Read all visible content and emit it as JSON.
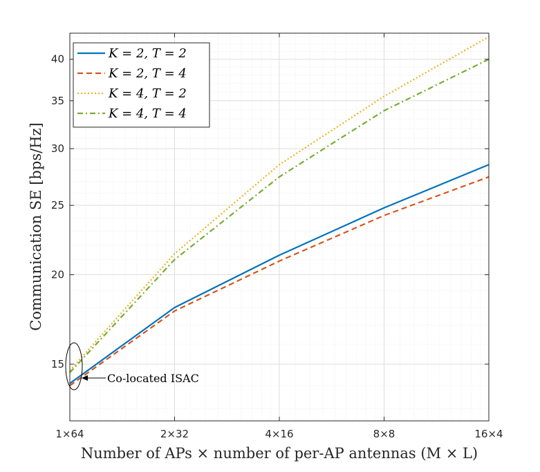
{
  "chart_data": {
    "type": "line",
    "title": "",
    "xlabel": "Number of APs × number of per-AP antennas (M × L)",
    "ylabel": "Communication SE [bps/Hz]",
    "x_scale": "log2",
    "x": [
      1,
      2,
      4,
      8,
      16
    ],
    "x_tick_labels": [
      "1×64",
      "2×32",
      "4×16",
      "8×8",
      "16×4"
    ],
    "y_scale": "log",
    "ylim": [
      12.5,
      43.5
    ],
    "y_ticks": [
      15,
      20,
      25,
      30,
      35,
      40
    ],
    "y_tick_labels": [
      "15",
      "20",
      "25",
      "30",
      "35",
      "40"
    ],
    "grid": true,
    "legend_position": "top-left",
    "series": [
      {
        "name": "K = 2, T = 2",
        "color": "#0072BD",
        "dash": "solid",
        "values": [
          14.1,
          18.0,
          21.3,
          24.8,
          28.5
        ]
      },
      {
        "name": "K = 2, T = 4",
        "color": "#D95319",
        "dash": "dashed",
        "values": [
          14.0,
          17.8,
          20.9,
          24.2,
          27.4
        ]
      },
      {
        "name": "K = 4, T = 2",
        "color": "#EDB120",
        "dash": "dotted",
        "values": [
          14.7,
          21.4,
          28.5,
          35.5,
          43.0
        ]
      },
      {
        "name": "K = 4, T = 4",
        "color": "#77AC30",
        "dash": "dashdot",
        "values": [
          14.6,
          21.0,
          27.4,
          33.9,
          40.0
        ]
      }
    ],
    "annotations": [
      {
        "text": "Co-located ISAC",
        "target_x": 1
      }
    ]
  }
}
